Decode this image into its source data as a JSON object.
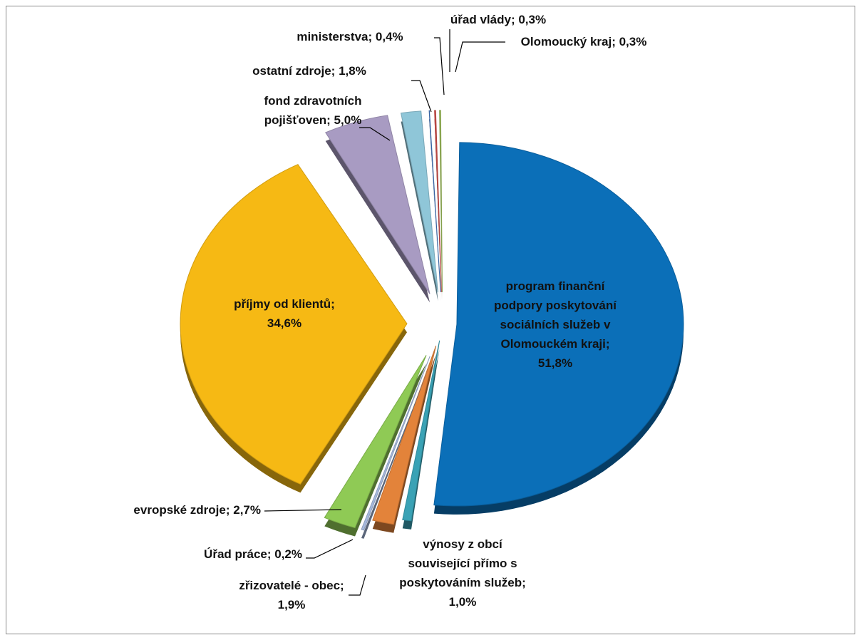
{
  "chart_data": {
    "type": "pie",
    "title": "",
    "slices": [
      {
        "label": "program finanční podpory poskytování sociálních služeb v Olomouckém kraji",
        "value": 51.8,
        "display": "program finanční podpory poskytování sociálních služeb v Olomouckém kraji; 51,8%",
        "color": "#0b6fb8"
      },
      {
        "label": "výnosy z obcí související přímo s poskytováním služeb",
        "value": 1.0,
        "display": "výnosy z obcí související přímo s poskytováním služeb; 1,0%",
        "color": "#3aa2b5"
      },
      {
        "label": "zřizovatelé - obec",
        "value": 1.9,
        "display": "zřizovatelé - obec; 1,9%",
        "color": "#e3833a"
      },
      {
        "label": "Úřad práce",
        "value": 0.2,
        "display": "Úřad práce; 0,2%",
        "color": "#a6b9dd"
      },
      {
        "label": "evropské zdroje",
        "value": 2.7,
        "display": "evropské zdroje; 2,7%",
        "color": "#8fca55"
      },
      {
        "label": "příjmy od klientů",
        "value": 34.6,
        "display": "příjmy od klientů; 34,6%",
        "color": "#f6b914"
      },
      {
        "label": "fond zdravotních pojišťoven",
        "value": 5.0,
        "display": "fond zdravotních pojišťoven; 5,0%",
        "color": "#a89bc2"
      },
      {
        "label": "ostatní zdroje",
        "value": 1.8,
        "display": "ostatní zdroje; 1,8%",
        "color": "#8fc6d8"
      },
      {
        "label": "ministerstva",
        "value": 0.4,
        "display": "ministerstva; 0,4%",
        "color": "#3f74c0"
      },
      {
        "label": "úřad vlády",
        "value": 0.3,
        "display": "úřad vlády; 0,3%",
        "color": "#cf4f4b"
      },
      {
        "label": "Olomoucký kraj",
        "value": 0.3,
        "display": "Olomoucký kraj; 0,3%",
        "color": "#9bbb59"
      }
    ]
  }
}
